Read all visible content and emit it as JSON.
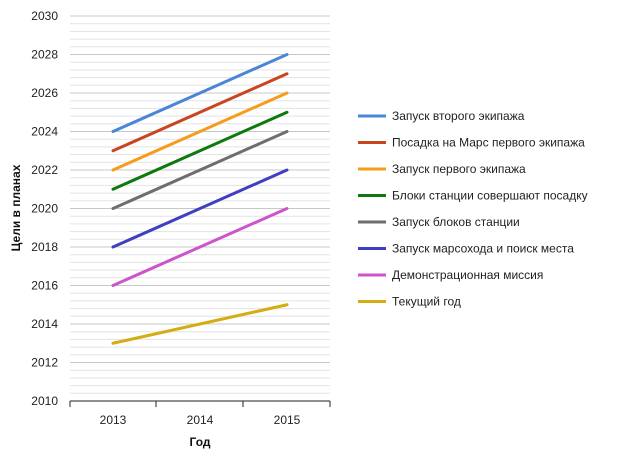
{
  "chart_data": {
    "type": "line",
    "title": "",
    "xlabel": "Год",
    "ylabel": "Цели в планах",
    "categories": [
      "2013",
      "2014",
      "2015"
    ],
    "ylim": [
      2010,
      2030
    ],
    "y_major_step": 2,
    "y_minor_step": 0.4,
    "grid": true,
    "legend_position": "right",
    "series": [
      {
        "name": "Запуск второго экипажа",
        "color": "#4a86d8",
        "values": [
          2024,
          2026,
          2028
        ]
      },
      {
        "name": "Посадка на Марс первого экипажа",
        "color": "#c9451f",
        "values": [
          2023,
          2025,
          2027
        ]
      },
      {
        "name": "Запуск первого экипажа",
        "color": "#f59c1a",
        "values": [
          2022,
          2024,
          2026
        ]
      },
      {
        "name": "Блоки станции совершают посадку",
        "color": "#0e7a0e",
        "values": [
          2021,
          2023,
          2025
        ]
      },
      {
        "name": "Запуск блоков станции",
        "color": "#6e6e6e",
        "values": [
          2020,
          2022,
          2024
        ]
      },
      {
        "name": "Запуск марсохода и поиск места",
        "color": "#3f3fbf",
        "values": [
          2018,
          2020,
          2022
        ]
      },
      {
        "name": "Демонстрационная миссия",
        "color": "#cc55cc",
        "values": [
          2016,
          2018,
          2020
        ]
      },
      {
        "name": "Текущий год",
        "color": "#d4ad12",
        "values": [
          2013,
          2014,
          2015
        ]
      }
    ]
  }
}
